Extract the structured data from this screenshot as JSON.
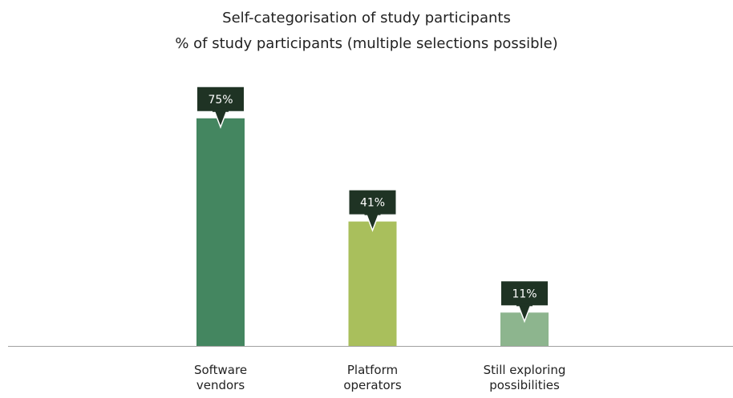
{
  "chart_data": {
    "type": "bar",
    "title": "Self-categorisation of study participants",
    "subtitle": "% of study participants (multiple selections possible)",
    "categories": [
      "Software vendors",
      "Platform operators",
      "Still exploring possibilities"
    ],
    "values": [
      75,
      41,
      11
    ],
    "value_labels": [
      "75%",
      "41%",
      "11%"
    ],
    "colors": [
      "#448660",
      "#a9bf5c",
      "#8db58e"
    ]
  }
}
